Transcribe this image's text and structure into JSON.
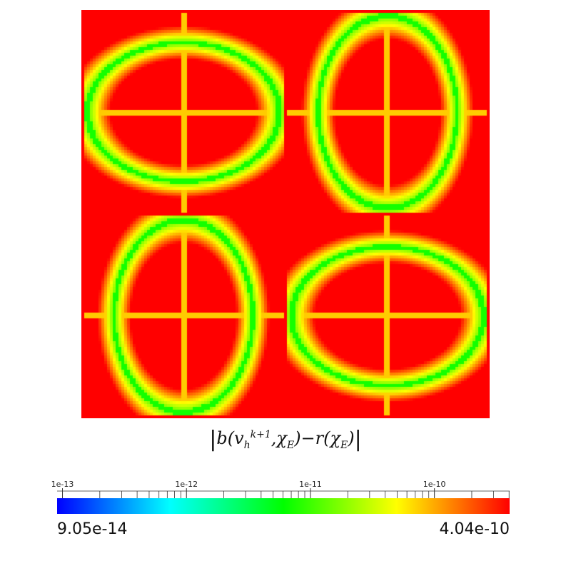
{
  "chart_data": {
    "type": "heatmap",
    "title": "",
    "formula": {
      "open": "|",
      "b": "b(v",
      "sub_h": "h",
      "sup": "k+1",
      "comma": ",χ",
      "sub_E1": "E",
      "mid": ")−r(χ",
      "sub_E2": "E",
      "close": ")",
      "end": "|"
    },
    "grid": {
      "rows": 2,
      "cols": 2
    },
    "colorbar": {
      "scale": "log",
      "min": 9.05e-14,
      "max": 4.04e-10,
      "min_label": "9.05e-14",
      "max_label": "4.04e-10",
      "major_ticks": [
        {
          "value": 1e-13,
          "label": "1e-13"
        },
        {
          "value": 1e-12,
          "label": "1e-12"
        },
        {
          "value": 1e-11,
          "label": "1e-11"
        },
        {
          "value": 1e-10,
          "label": "1e-10"
        }
      ],
      "minor_ticks": [
        2e-13,
        3e-13,
        4e-13,
        5e-13,
        6e-13,
        7e-13,
        8e-13,
        9e-13,
        2e-12,
        3e-12,
        4e-12,
        5e-12,
        6e-12,
        7e-12,
        8e-12,
        9e-12,
        2e-11,
        3e-11,
        4e-11,
        5e-11,
        6e-11,
        7e-11,
        8e-11,
        9e-11,
        2e-10,
        3e-10,
        4e-10
      ],
      "colormap": [
        "#0000ff",
        "#00ffff",
        "#00ff00",
        "#ffff00",
        "#ff0000"
      ]
    }
  }
}
